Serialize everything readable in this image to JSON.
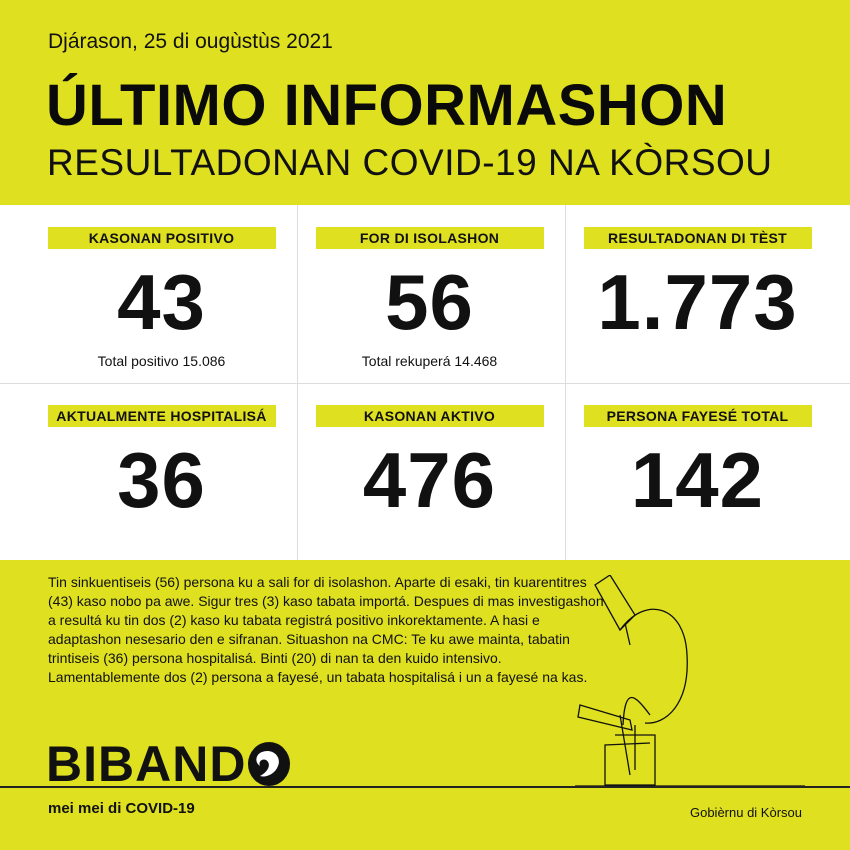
{
  "header": {
    "date": "Djárason, 25 di ougùstùs 2021",
    "title": "ÚLTIMO INFORMASHON",
    "subtitle": "RESULTADONAN COVID-19 NA KÒRSOU"
  },
  "stats": [
    {
      "label": "KASONAN POSITIVO",
      "value": "43",
      "sub": "Total positivo 15.086"
    },
    {
      "label": "FOR DI ISOLASHON",
      "value": "56",
      "sub": "Total rekuperá 14.468"
    },
    {
      "label": "RESULTADONAN DI TÈST",
      "value": "1.773"
    },
    {
      "label": "AKTUALMENTE HOSPITALISÁ",
      "value": "36"
    },
    {
      "label": "KASONAN AKTIVO",
      "value": "476"
    },
    {
      "label": "PERSONA FAYESÉ TOTAL",
      "value": "142"
    }
  ],
  "body": "Tin sinkuentiseis (56) persona ku a sali for di isolashon. Aparte di esaki, tin kuarentitres (43) kaso nobo pa awe. Sigur tres (3) kaso tabata importá. Despues di mas investigashon a resultá ku tin dos (2) kaso ku tabata registrá positivo inkorektamente. A hasi e adaptashon nesesario den e sifranan. Situashon na CMC: Te ku awe mainta, tabatin trintiseis (36) persona hospitalisá. Binti (20) di nan ta den kuido intensivo. Lamentablemente dos (2) persona a fayesé, un tabata hospitalisá i un a fayesé na kas.",
  "footer": {
    "logo": "BIBAND",
    "tagline": "mei mei di COVID-19",
    "government": "Gobièrnu di Kòrsou"
  },
  "colors": {
    "background": "#dfe020",
    "panel": "#ffffff",
    "text": "#111111"
  },
  "icons": [
    "microscope-line-drawing",
    "bibando-logo-o"
  ]
}
